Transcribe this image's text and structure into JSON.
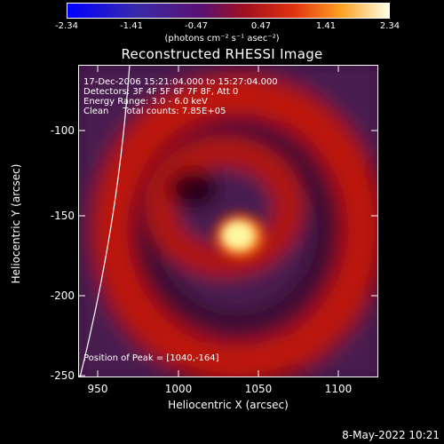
{
  "colorbar": {
    "ticks": [
      "-2.34",
      "-1.41",
      "-0.47",
      "0.47",
      "1.41",
      "2.34"
    ],
    "unit": "(photons cm⁻² s⁻¹ asec⁻²)"
  },
  "title": "Reconstructed RHESSI Image",
  "info": {
    "time": "17-Dec-2006 15:21:04.000 to 15:27:04.000",
    "detectors": "Detectors: 3F 4F 5F 6F 7F 8F, Att 0",
    "energy": "Energy Range: 3.0 - 6.0 keV",
    "clean": "Clean     Total counts: 7.85E+05"
  },
  "peak": "Position of Peak = [1040,-164]",
  "axes": {
    "xlabel": "Heliocentric X (arcsec)",
    "ylabel": "Heliocentric Y (arcsec)",
    "xticks": [
      "950",
      "1000",
      "1050",
      "1100"
    ],
    "yticks": [
      "-100",
      "-150",
      "-200",
      "-250"
    ]
  },
  "date": "8-May-2022 10:21"
}
